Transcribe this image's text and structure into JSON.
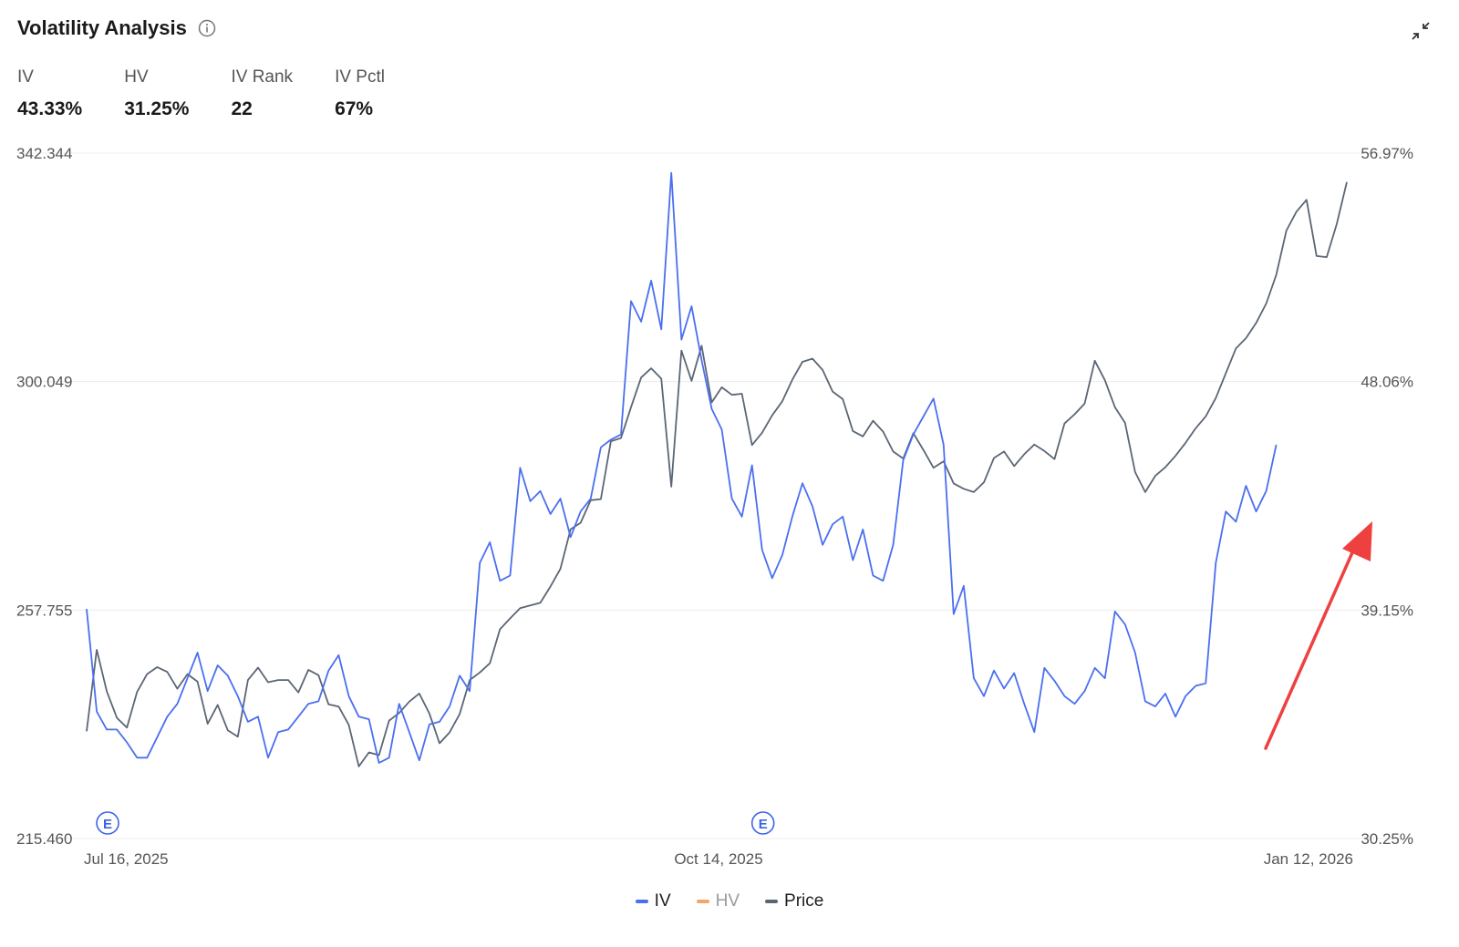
{
  "header": {
    "title": "Volatility Analysis",
    "info_icon": "info-icon",
    "collapse_icon": "collapse-icon"
  },
  "metrics": [
    {
      "label": "IV",
      "value": "43.33%"
    },
    {
      "label": "HV",
      "value": "31.25%"
    },
    {
      "label": "IV Rank",
      "value": "22"
    },
    {
      "label": "IV Pctl",
      "value": "67%"
    }
  ],
  "colors": {
    "iv": "#4a6ff0",
    "hv": "#f5a46a",
    "price": "#5b6675",
    "grid": "#ececec",
    "event": "#3d63e8",
    "arrow": "#ef4040"
  },
  "chart_data": {
    "type": "line",
    "left_axis_ticks": [
      "342.344",
      "300.049",
      "257.755",
      "215.460"
    ],
    "right_axis_ticks": [
      "56.97%",
      "48.06%",
      "39.15%",
      "30.25%"
    ],
    "x_ticks": [
      "Jul 16, 2025",
      "Oct 14, 2025",
      "Jan 12, 2026"
    ],
    "left_ylim": [
      215.46,
      342.344
    ],
    "right_ylim": [
      30.25,
      56.97
    ],
    "event_markers": [
      {
        "label": "E",
        "index": 1
      },
      {
        "label": "E",
        "index": 66
      }
    ],
    "series": [
      {
        "name": "IV",
        "axis": "right",
        "values": [
          39.2,
          35.2,
          34.5,
          34.5,
          34.0,
          33.4,
          33.4,
          34.2,
          35.0,
          35.5,
          36.5,
          37.5,
          36.0,
          37.0,
          36.6,
          35.8,
          34.8,
          35.0,
          33.4,
          34.4,
          34.5,
          35.0,
          35.5,
          35.6,
          36.8,
          37.4,
          35.8,
          35.0,
          34.9,
          33.2,
          33.4,
          35.5,
          34.4,
          33.3,
          34.7,
          34.8,
          35.4,
          36.6,
          36.0,
          41.0,
          41.8,
          40.3,
          40.5,
          44.7,
          43.4,
          43.8,
          42.9,
          43.5,
          42.0,
          43.0,
          43.5,
          45.5,
          45.8,
          46.0,
          51.2,
          50.4,
          52.0,
          50.1,
          56.2,
          49.7,
          51.0,
          48.9,
          47.0,
          46.2,
          43.5,
          42.8,
          44.8,
          41.5,
          40.4,
          41.3,
          42.8,
          44.1,
          43.2,
          41.7,
          42.5,
          42.8,
          41.1,
          42.3,
          40.5,
          40.3,
          41.7,
          45.0,
          46.0,
          46.7,
          47.4,
          45.6,
          39.0,
          40.1,
          36.5,
          35.8,
          36.8,
          36.1,
          36.7,
          35.5,
          34.4,
          36.9,
          36.4,
          35.8,
          35.5,
          36.0,
          36.9,
          36.5,
          39.1,
          38.6,
          37.5,
          35.6,
          35.4,
          35.9,
          35.0,
          35.8,
          36.2,
          36.3,
          41.0,
          43.0,
          42.6,
          44.0,
          43.0,
          43.8,
          45.6
        ]
      },
      {
        "name": "HV",
        "axis": "right",
        "values": []
      },
      {
        "name": "Price",
        "axis": "left",
        "values": [
          235.3,
          250.4,
          242.7,
          237.8,
          236.0,
          242.6,
          245.9,
          247.2,
          246.3,
          243.2,
          245.9,
          244.5,
          236.7,
          240.2,
          235.5,
          234.3,
          244.8,
          247.1,
          244.4,
          244.8,
          244.8,
          242.5,
          246.7,
          245.7,
          240.3,
          239.9,
          236.5,
          228.8,
          231.4,
          230.9,
          237.3,
          238.7,
          240.8,
          242.3,
          238.6,
          233.1,
          235.1,
          238.5,
          244.8,
          246.2,
          247.9,
          254.2,
          256.2,
          258.1,
          258.6,
          259.1,
          262.1,
          265.4,
          272.7,
          273.9,
          278.1,
          278.3,
          289.0,
          289.6,
          295.3,
          300.8,
          302.5,
          300.6,
          280.6,
          305.8,
          300.2,
          306.7,
          296.2,
          299.0,
          297.6,
          297.8,
          288.3,
          290.6,
          293.8,
          296.4,
          300.4,
          303.7,
          304.3,
          302.2,
          298.2,
          296.8,
          290.9,
          289.9,
          292.8,
          290.8,
          287.1,
          285.8,
          290.5,
          287.4,
          284.1,
          285.3,
          281.2,
          280.2,
          279.6,
          281.4,
          285.9,
          287.1,
          284.4,
          286.6,
          288.4,
          287.2,
          285.7,
          292.3,
          294.0,
          296.0,
          303.9,
          300.3,
          295.3,
          292.4,
          283.3,
          279.6,
          282.6,
          284.2,
          286.3,
          288.7,
          291.4,
          293.6,
          297.0,
          301.6,
          306.2,
          308.1,
          310.9,
          314.5,
          319.8,
          328.0,
          331.5,
          333.7,
          323.3,
          323.1,
          329.2,
          337.0
        ]
      }
    ]
  }
}
